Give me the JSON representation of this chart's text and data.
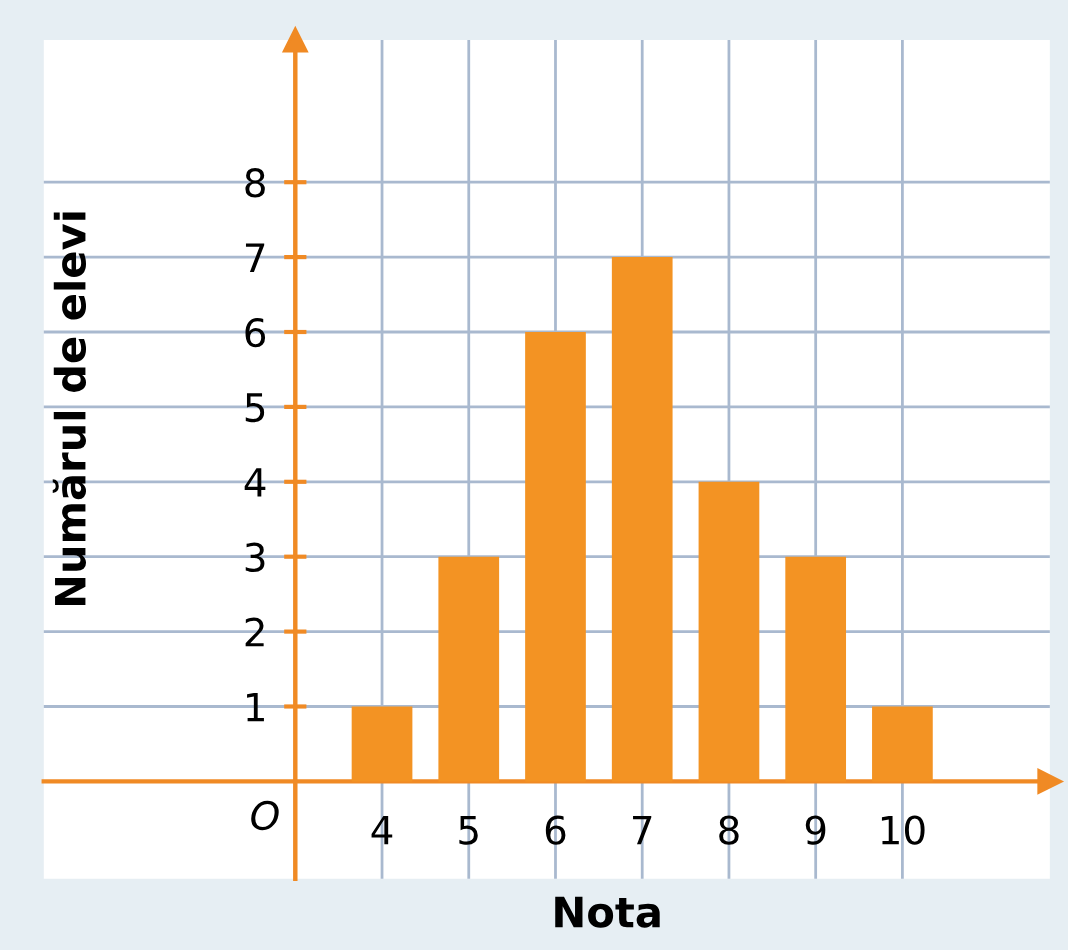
{
  "chart_data": {
    "type": "bar",
    "xlabel": "Nota",
    "ylabel": "Numărul de elevi",
    "categories": [
      "4",
      "5",
      "6",
      "7",
      "8",
      "9",
      "10"
    ],
    "values": [
      1,
      3,
      6,
      7,
      4,
      3,
      1
    ],
    "color": "#f39323",
    "ylim": [
      -1.3,
      9.9
    ],
    "yticks": [
      1,
      2,
      3,
      4,
      5,
      6,
      7,
      8
    ],
    "grid": true,
    "annotations": [
      "O"
    ]
  }
}
